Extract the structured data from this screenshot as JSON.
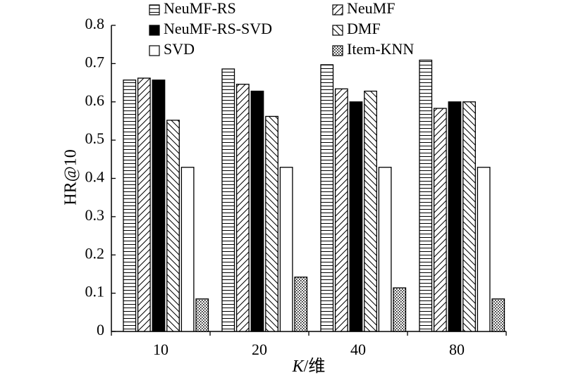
{
  "chart_data": {
    "type": "bar",
    "title": "",
    "xlabel_italic": "K",
    "xlabel_rest": "/维",
    "ylabel": "HR@10",
    "ylim": [
      0,
      0.8
    ],
    "yticks": [
      "0",
      "0.1",
      "0.2",
      "0.3",
      "0.4",
      "0.5",
      "0.6",
      "0.7",
      "0.8"
    ],
    "categories": [
      "10",
      "20",
      "40",
      "80"
    ],
    "grid": false,
    "legend_position": "top",
    "series": [
      {
        "name": "NeuMF-RS",
        "pattern": "hlines",
        "values": [
          0.657,
          0.686,
          0.697,
          0.709
        ]
      },
      {
        "name": "NeuMF",
        "pattern": "fdiag",
        "values": [
          0.662,
          0.646,
          0.634,
          0.583
        ]
      },
      {
        "name": "NeuMF-RS-SVD",
        "pattern": "solid",
        "values": [
          0.657,
          0.628,
          0.6,
          0.6
        ]
      },
      {
        "name": "DMF",
        "pattern": "bdiag",
        "values": [
          0.552,
          0.562,
          0.628,
          0.6
        ]
      },
      {
        "name": "SVD",
        "pattern": "empty",
        "values": [
          0.429,
          0.429,
          0.429,
          0.429
        ]
      },
      {
        "name": "Item-KNN",
        "pattern": "dots",
        "values": [
          0.085,
          0.142,
          0.114,
          0.085
        ]
      }
    ]
  }
}
